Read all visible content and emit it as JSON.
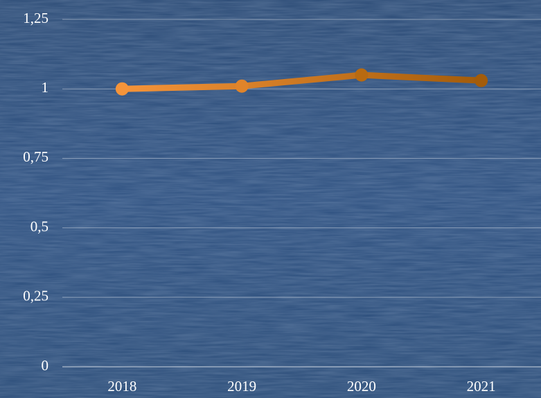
{
  "chart_data": {
    "type": "line",
    "categories": [
      "2018",
      "2019",
      "2020",
      "2021"
    ],
    "series": [
      {
        "values": [
          1.0,
          1.01,
          1.05,
          1.03
        ],
        "color": "#e08a2e",
        "point_colors": [
          "#f5943a",
          "#e0842a",
          "#b86a10",
          "#a35c0a"
        ]
      }
    ],
    "ylim": [
      0,
      1.25
    ],
    "yticks": [
      0,
      {
        "value": 0.25,
        "label": "0,25"
      },
      {
        "value": 0.5,
        "label": "0,5"
      },
      {
        "value": 0.75,
        "label": "0,75"
      },
      1,
      {
        "value": 1.25,
        "label": "1,25"
      }
    ],
    "grid": true
  }
}
